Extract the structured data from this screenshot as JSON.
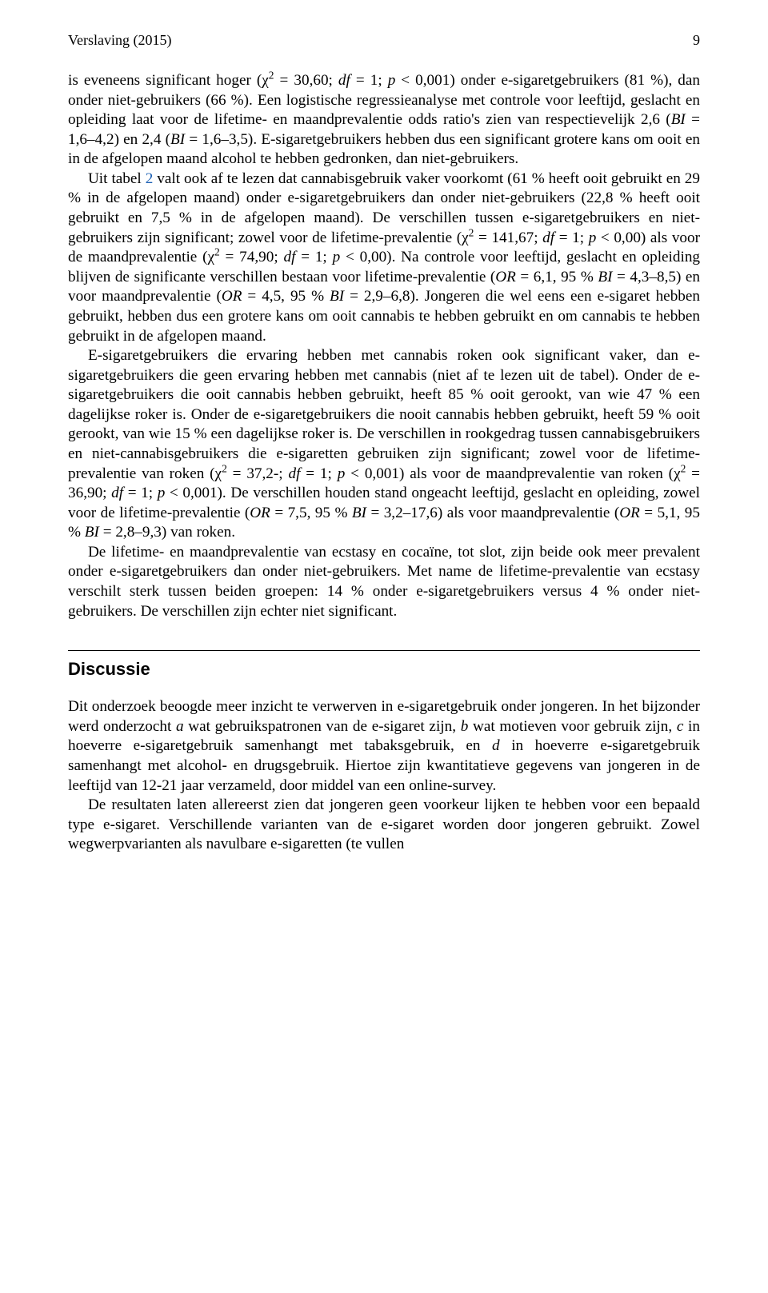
{
  "header": {
    "journal": "Verslaving (2015)",
    "page": "9"
  },
  "para1_a": "is eveneens significant hoger (χ",
  "para1_b": " = 30,60; ",
  "para1_c": "df",
  "para1_d": " = 1; ",
  "para1_e": "p",
  "para1_f": " < 0,001) onder e-sigaretgebruikers (81 %), dan onder niet-gebruikers (66 %). Een logistische regressieanalyse met controle voor leeftijd, geslacht en opleiding laat voor de lifetime- en maandprevalentie odds ratio's zien van respectievelijk 2,6 (",
  "para1_g": "BI",
  "para1_h": " = 1,6–4,2) en 2,4 (",
  "para1_i": "BI",
  "para1_j": " = 1,6–3,5). E-sigaretgebruikers hebben dus een significant grotere kans om ooit en in de afgelopen maand alcohol te hebben gedronken, dan niet-gebruikers.",
  "para2_a": "Uit tabel ",
  "para2_tabref": "2",
  "para2_b": " valt ook af te lezen dat cannabisgebruik vaker voorkomt (61 % heeft ooit gebruikt en 29 % in de afgelopen maand) onder e-sigaretgebruikers dan onder niet-gebruikers (22,8 % heeft ooit gebruikt en 7,5 % in de afgelopen maand). De verschillen tussen e-sigaretgebruikers en niet-gebruikers zijn significant; zowel voor de lifetime-prevalentie (χ",
  "para2_c": " = 141,67; ",
  "para2_d": "df",
  "para2_e": " = 1; ",
  "para2_f": "p",
  "para2_g": " < 0,00) als voor de maandprevalentie (χ",
  "para2_h": " = 74,90; ",
  "para2_i": "df",
  "para2_j": " = 1; ",
  "para2_k": "p",
  "para2_l": " < 0,00). Na controle voor leeftijd, geslacht en opleiding blijven de significante verschillen bestaan voor lifetime-prevalentie (",
  "para2_m": "OR",
  "para2_n": " = 6,1, 95 % ",
  "para2_o": "BI",
  "para2_p": " = 4,3–8,5) en voor maandprevalentie (",
  "para2_q": "OR",
  "para2_r": " = 4,5, 95 % ",
  "para2_s": "BI",
  "para2_t": " = 2,9–6,8). Jongeren die wel eens een e-sigaret hebben gebruikt, hebben dus een grotere kans om ooit cannabis te hebben gebruikt en om cannabis te hebben gebruikt in de afgelopen maand.",
  "para3_a": "E-sigaretgebruikers die ervaring hebben met cannabis roken ook significant vaker, dan e-sigaretgebruikers die geen ervaring hebben met cannabis (niet af te lezen uit de tabel). Onder de e-sigaretgebruikers die ooit cannabis hebben gebruikt, heeft 85 % ooit gerookt, van wie 47 % een dagelijkse roker is. Onder de e-sigaretgebruikers die nooit cannabis hebben gebruikt, heeft 59 % ooit gerookt, van wie 15 % een dagelijkse roker is. De verschillen in rookgedrag tussen cannabisgebruikers en niet-cannabisgebruikers die e-sigaretten gebruiken zijn significant; zowel voor de lifetime-prevalentie van roken (χ",
  "para3_b": " = 37,2-; ",
  "para3_c": "df",
  "para3_d": " = 1; ",
  "para3_e": "p",
  "para3_f": " < 0,001) als voor de maandprevalentie van roken (χ",
  "para3_g": " = 36,90; ",
  "para3_h": "df",
  "para3_i": " = 1; ",
  "para3_j": "p",
  "para3_k": " < 0,001). De verschillen houden stand ongeacht leeftijd, geslacht en opleiding, zowel voor de lifetime-prevalentie (",
  "para3_l": "OR",
  "para3_m": " = 7,5, 95 % ",
  "para3_n": "BI",
  "para3_o": " = 3,2–17,6) als voor maandprevalentie (",
  "para3_p": "OR",
  "para3_q": " = 5,1, 95 % ",
  "para3_r": "BI",
  "para3_s": " = 2,8–9,3) van roken.",
  "para4": "De lifetime- en maandprevalentie van ecstasy en cocaïne, tot slot, zijn beide ook meer prevalent onder e-sigaretgebruikers dan onder niet-gebruikers. Met name de lifetime-prevalentie van ecstasy verschilt sterk tussen beiden groepen: 14 % onder e-sigaretgebruikers versus 4 % onder niet-gebruikers. De verschillen zijn echter niet significant.",
  "section_title": "Discussie",
  "disc_p1_a": "Dit onderzoek beoogde meer inzicht te verwerven in e-sigaretgebruik onder jongeren. In het bijzonder werd onderzocht ",
  "disc_p1_b": "a",
  "disc_p1_c": " wat gebruikspatronen van de e-sigaret zijn, ",
  "disc_p1_d": "b",
  "disc_p1_e": " wat motieven voor gebruik zijn, ",
  "disc_p1_f": "c",
  "disc_p1_g": " in hoeverre e-sigaretgebruik samenhangt met tabaksgebruik, en ",
  "disc_p1_h": "d",
  "disc_p1_i": " in hoeverre e-sigaretgebruik samenhangt met alcohol- en drugsgebruik. Hiertoe zijn kwantitatieve gegevens van jongeren in de leeftijd van 12-21 jaar verzameld, door middel van een online-survey.",
  "disc_p2": "De resultaten laten allereerst zien dat jongeren geen voorkeur lijken te hebben voor een bepaald type e-sigaret. Verschillende varianten van de e-sigaret worden door jongeren gebruikt. Zowel wegwerpvarianten als navulbare e-sigaretten (te vullen"
}
